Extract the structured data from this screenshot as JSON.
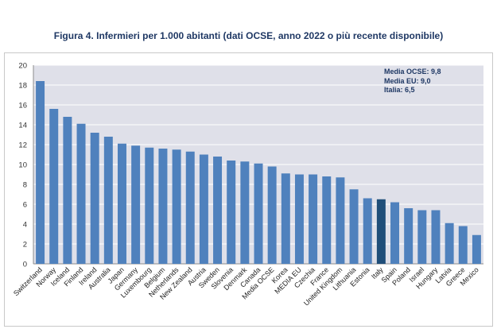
{
  "title": "Figura 4. Infermieri per 1.000 abitanti (dati OCSE, anno 2022 o più recente disponibile)",
  "annotation": [
    "Media OCSE: 9,8",
    "Media EU: 9,0",
    "Italia: 6,5"
  ],
  "colors": {
    "bar": "#4f81bd",
    "highlight": "#1f4e79",
    "plot_bg": "#dfe0e9",
    "grid": "#ffffff"
  },
  "chart_data": {
    "type": "bar",
    "title": "Figura 4. Infermieri per 1.000 abitanti (dati OCSE, anno 2022 o più recente disponibile)",
    "categories": [
      "Switzerland",
      "Norway",
      "Iceland",
      "Finland",
      "Ireland",
      "Australia",
      "Japan",
      "Germany",
      "Luxembourg",
      "Belgium",
      "Netherlands",
      "New Zealand",
      "Austria",
      "Sweden",
      "Slovenia",
      "Denmark",
      "Canada",
      "Media OCSE",
      "Korea",
      "MEDIA EU",
      "Czechia",
      "France",
      "United Kingdom",
      "Lithuania",
      "Estonia",
      "Italy",
      "Spain",
      "Poland",
      "Israel",
      "Hungary",
      "Latvia",
      "Greece",
      "Mexico"
    ],
    "values": [
      18.4,
      15.6,
      14.8,
      14.1,
      13.2,
      12.8,
      12.1,
      11.9,
      11.7,
      11.6,
      11.5,
      11.3,
      11.0,
      10.8,
      10.4,
      10.3,
      10.1,
      9.8,
      9.1,
      9.0,
      9.0,
      8.8,
      8.7,
      7.5,
      6.6,
      6.5,
      6.2,
      5.6,
      5.4,
      5.4,
      4.1,
      3.8,
      2.9
    ],
    "highlight": "Italy",
    "ylim": [
      0,
      20
    ],
    "yticks": [
      0,
      2,
      4,
      6,
      8,
      10,
      12,
      14,
      16,
      18,
      20
    ],
    "grid": true,
    "xlabel": "",
    "ylabel": ""
  }
}
